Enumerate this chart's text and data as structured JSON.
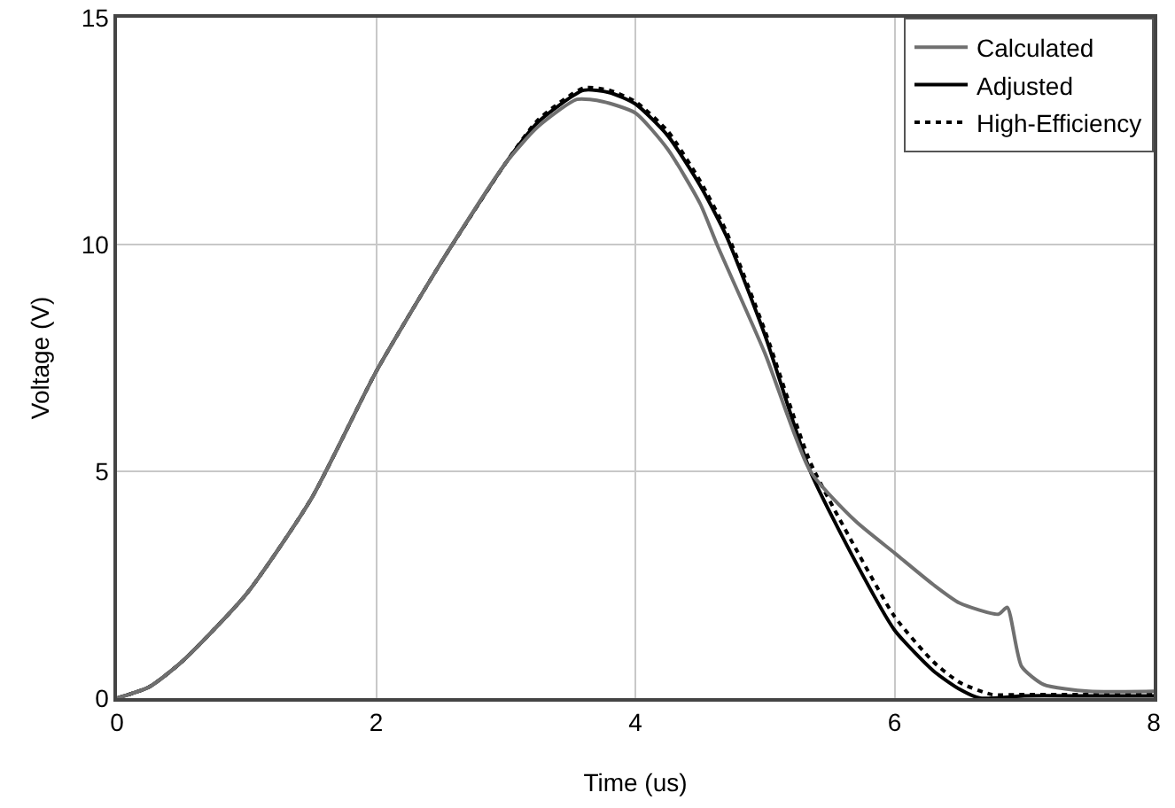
{
  "chart_data": {
    "type": "line",
    "xlabel": "Time (us)",
    "ylabel": "Voltage (V)",
    "xlim": [
      0,
      8
    ],
    "xticks": [
      0,
      2,
      4,
      6,
      8
    ],
    "ylim": [
      0,
      15
    ],
    "yticks": [
      0,
      5,
      10,
      15
    ],
    "grid": true,
    "legend": "top right",
    "series": [
      {
        "name": "Calculated",
        "color": "#707070",
        "line_style": "solid",
        "x": [
          0,
          0.25,
          0.5,
          1,
          1.5,
          2,
          2.5,
          3,
          3.25,
          3.55,
          3.75,
          4,
          4.25,
          4.5,
          4.63,
          5,
          5.35,
          5.7,
          6,
          6.3,
          6.5,
          6.8,
          6.87,
          6.98,
          7.15,
          7.5,
          8
        ],
        "values": [
          0,
          0.25,
          0.8,
          2.3,
          4.4,
          7.2,
          9.6,
          11.8,
          12.6,
          13.2,
          13.15,
          12.9,
          12.1,
          10.9,
          10,
          7.6,
          5,
          3.9,
          3.2,
          2.5,
          2.1,
          1.85,
          2,
          0.7,
          0.3,
          0.15,
          0.15
        ]
      },
      {
        "name": "Adjusted",
        "color": "#000000",
        "line_style": "solid",
        "x": [
          0,
          0.25,
          0.5,
          1,
          1.5,
          2,
          2.5,
          3,
          3.25,
          3.6,
          3.8,
          4,
          4.25,
          4.5,
          4.7,
          5,
          5.35,
          5.7,
          6,
          6.3,
          6.5,
          6.66,
          7,
          7.5,
          8
        ],
        "values": [
          0,
          0.25,
          0.8,
          2.3,
          4.4,
          7.2,
          9.6,
          11.8,
          12.7,
          13.4,
          13.35,
          13.1,
          12.4,
          11.3,
          10.2,
          8,
          5,
          3,
          1.5,
          0.6,
          0.2,
          0,
          0.05,
          0.05,
          0.05
        ]
      },
      {
        "name": "High-Efficiency",
        "color": "#000000",
        "line_style": "dotted",
        "x": [
          0,
          0.25,
          0.5,
          1,
          1.5,
          2,
          2.5,
          3,
          3.25,
          3.6,
          3.8,
          4,
          4.25,
          4.5,
          4.7,
          5,
          5.35,
          5.7,
          6,
          6.3,
          6.5,
          6.75,
          7,
          7.5,
          8
        ],
        "values": [
          0,
          0.25,
          0.8,
          2.3,
          4.4,
          7.2,
          9.6,
          11.8,
          12.75,
          13.45,
          13.4,
          13.15,
          12.5,
          11.4,
          10.3,
          8.1,
          5.2,
          3.3,
          1.8,
          0.8,
          0.35,
          0.08,
          0.08,
          0.08,
          0.08
        ]
      }
    ]
  }
}
